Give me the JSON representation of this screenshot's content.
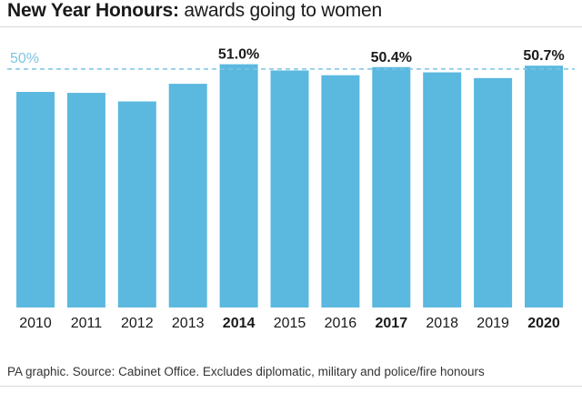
{
  "title": {
    "bold": "New Year Honours:",
    "rest": " awards going to women"
  },
  "source": "PA graphic. Source: Cabinet Office. Excludes diplomatic, military and police/fire honours",
  "colors": {
    "bar": "#5bb8df",
    "reference_line": "#7cc4e4",
    "text": "#1a1a1a"
  },
  "chart_data": {
    "type": "bar",
    "title": "New Year Honours: awards going to women",
    "xlabel": "",
    "ylabel": "",
    "ylim": [
      0,
      51.5
    ],
    "categories": [
      "2010",
      "2011",
      "2012",
      "2013",
      "2014",
      "2015",
      "2016",
      "2017",
      "2018",
      "2019",
      "2020"
    ],
    "values": [
      45.2,
      45.0,
      43.2,
      46.9,
      51.0,
      49.7,
      48.7,
      50.4,
      49.3,
      48.1,
      50.7
    ],
    "highlighted": [
      "2014",
      "2017",
      "2020"
    ],
    "data_labels": [
      {
        "category": "2014",
        "label": "51.0%"
      },
      {
        "category": "2017",
        "label": "50.4%"
      },
      {
        "category": "2020",
        "label": "50.7%"
      }
    ],
    "reference_line": {
      "value": 50,
      "label": "50%",
      "style": "dashed"
    },
    "grid": false,
    "legend": "none"
  }
}
